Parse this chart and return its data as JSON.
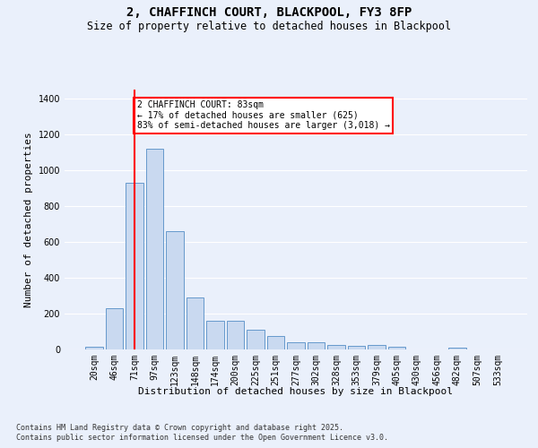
{
  "title": "2, CHAFFINCH COURT, BLACKPOOL, FY3 8FP",
  "subtitle": "Size of property relative to detached houses in Blackpool",
  "xlabel": "Distribution of detached houses by size in Blackpool",
  "ylabel": "Number of detached properties",
  "footnote1": "Contains HM Land Registry data © Crown copyright and database right 2025.",
  "footnote2": "Contains public sector information licensed under the Open Government Licence v3.0.",
  "categories": [
    "20sqm",
    "46sqm",
    "71sqm",
    "97sqm",
    "123sqm",
    "148sqm",
    "174sqm",
    "200sqm",
    "225sqm",
    "251sqm",
    "277sqm",
    "302sqm",
    "328sqm",
    "353sqm",
    "379sqm",
    "405sqm",
    "430sqm",
    "456sqm",
    "482sqm",
    "507sqm",
    "533sqm"
  ],
  "values": [
    15,
    230,
    930,
    1120,
    660,
    290,
    160,
    160,
    110,
    75,
    40,
    40,
    25,
    20,
    25,
    15,
    0,
    0,
    10,
    0,
    0
  ],
  "bar_color": "#c9d9f0",
  "bar_edge_color": "#6699cc",
  "vline_x": 2,
  "vline_color": "red",
  "annotation_line1": "2 CHAFFINCH COURT: 83sqm",
  "annotation_line2": "← 17% of detached houses are smaller (625)",
  "annotation_line3": "83% of semi-detached houses are larger (3,018) →",
  "annotation_box_color": "red",
  "annotation_box_facecolor": "white",
  "ylim": [
    0,
    1450
  ],
  "background_color": "#eaf0fb",
  "grid_color": "white",
  "title_fontsize": 10,
  "subtitle_fontsize": 8.5,
  "axis_label_fontsize": 8,
  "tick_fontsize": 7,
  "footnote_fontsize": 6
}
